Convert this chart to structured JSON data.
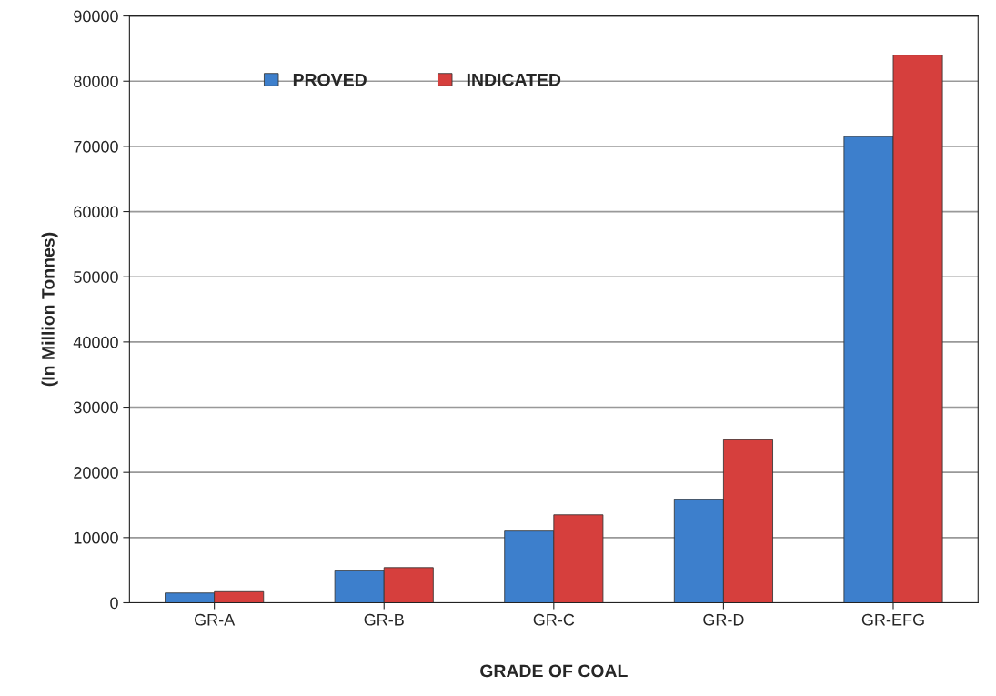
{
  "chart_data": {
    "type": "bar",
    "xlabel": "GRADE OF COAL",
    "ylabel": "(In Million Tonnes)",
    "categories": [
      "GR-A",
      "GR-B",
      "GR-C",
      "GR-D",
      "GR-EFG"
    ],
    "series": [
      {
        "name": "PROVED",
        "color": "#3d7fcc",
        "values": [
          1500,
          4900,
          11000,
          15800,
          71500
        ]
      },
      {
        "name": "INDICATED",
        "color": "#d63f3d",
        "values": [
          1700,
          5400,
          13500,
          25000,
          84000
        ]
      }
    ],
    "ylim": [
      0,
      90000
    ],
    "yticks": [
      0,
      10000,
      20000,
      30000,
      40000,
      50000,
      60000,
      70000,
      80000,
      90000
    ],
    "grid": "y",
    "legend": "top left"
  }
}
